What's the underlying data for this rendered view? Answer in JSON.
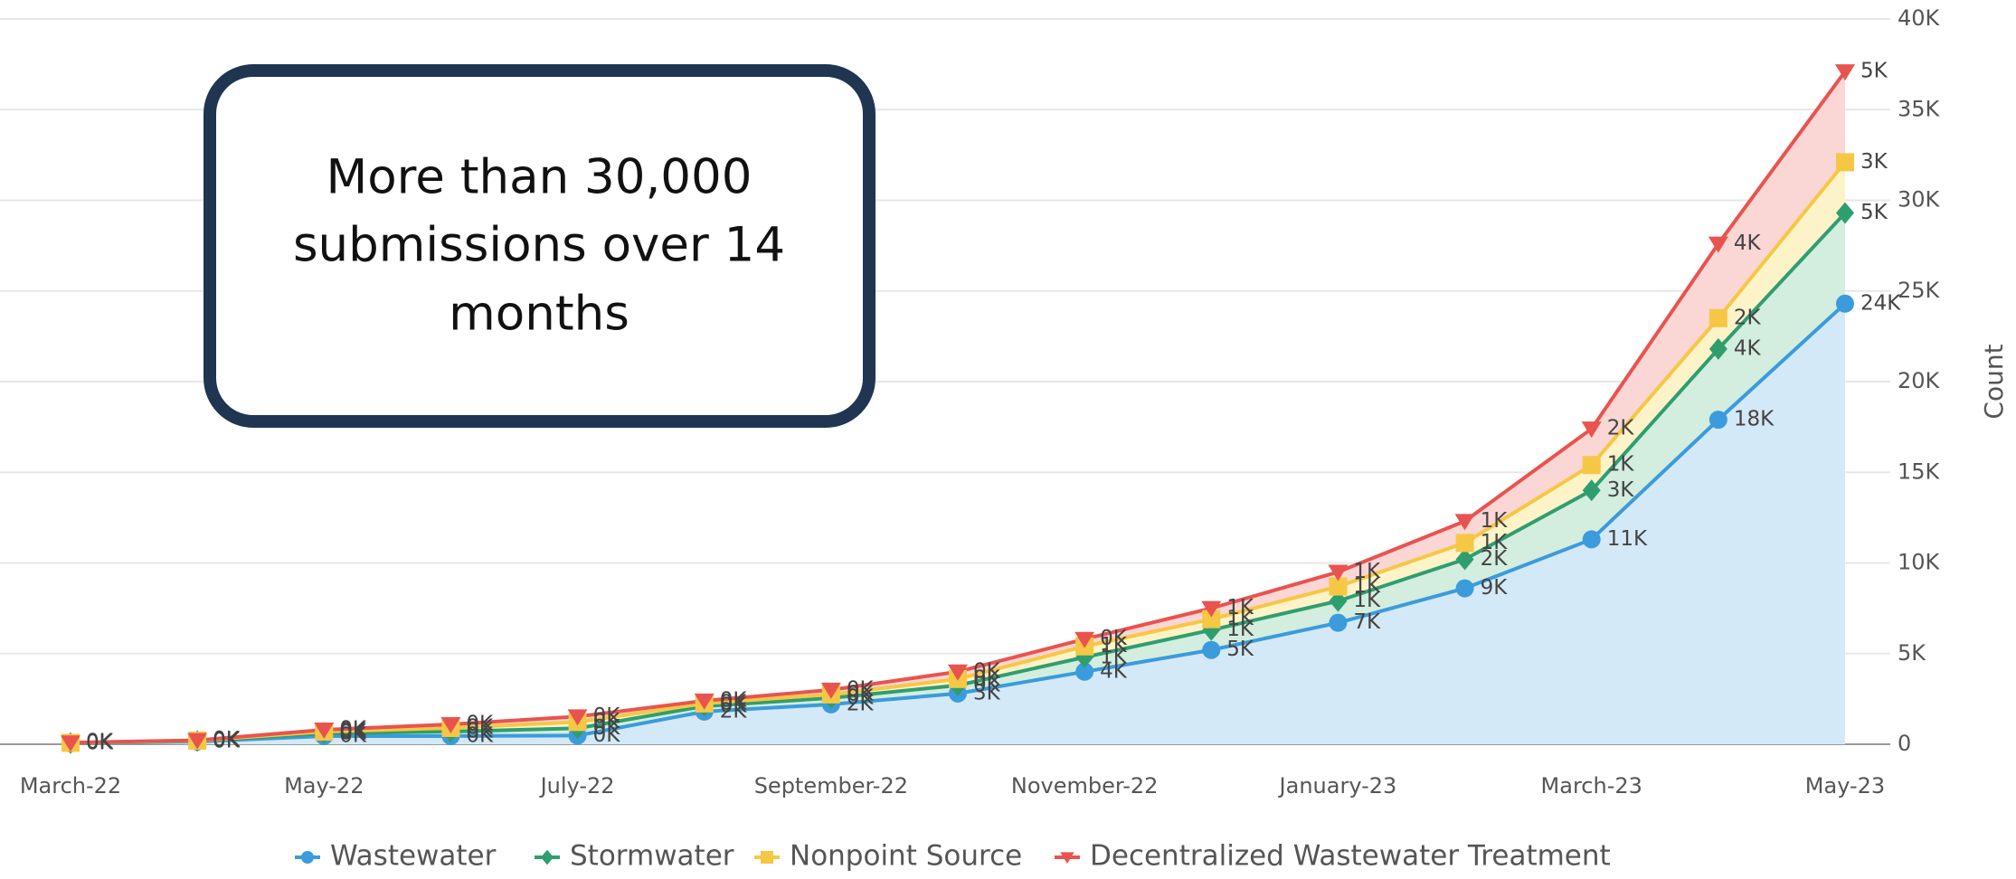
{
  "chart_data": {
    "type": "stacked-area",
    "categories": [
      "March-22",
      null,
      "May-22",
      null,
      "July-22",
      null,
      "September-22",
      null,
      "November-22",
      null,
      "January-23",
      null,
      "March-23",
      null,
      "May-23"
    ],
    "y_axis_label": "Count",
    "annotation": [
      "More than 30,000",
      "submissions over 14",
      "months"
    ],
    "ylim": [
      0,
      40000
    ],
    "yticks": [
      0,
      {
        "value": 5000,
        "label": "5K"
      },
      {
        "value": 10000,
        "label": "10K"
      },
      {
        "value": 15000,
        "label": "15K"
      },
      {
        "value": 20000,
        "label": "20K"
      },
      {
        "value": 25000,
        "label": "25K"
      },
      {
        "value": 30000,
        "label": "30K"
      },
      {
        "value": 35000,
        "label": "35K"
      },
      {
        "value": 40000,
        "label": "40K"
      }
    ],
    "grid": true,
    "legend": "bottom",
    "series": [
      {
        "name": "Wastewater",
        "color": "#3b9bdc",
        "fill": "#d4e9f7",
        "marker": "circle",
        "values": [
          50,
          150,
          450,
          450,
          480,
          1800,
          2200,
          2800,
          4000,
          5200,
          6700,
          8600,
          11300,
          17900,
          24300
        ],
        "value_labels": [
          "0K",
          "0K",
          "0K",
          "0K",
          "0K",
          "2K",
          "2K",
          "3K",
          "4K",
          "5K",
          "7K",
          "9K",
          "11K",
          "18K",
          "24K"
        ]
      },
      {
        "name": "Stormwater",
        "color": "#2f9e6f",
        "fill": "#d3eddf",
        "marker": "diamond",
        "values": [
          20,
          30,
          150,
          250,
          400,
          300,
          350,
          450,
          800,
          1100,
          1200,
          1600,
          2700,
          3900,
          5000
        ],
        "value_labels": [
          "0K",
          "0K",
          "0K",
          "0K",
          "0K",
          "0K",
          "0K",
          "0K",
          "1K",
          "1K",
          "1K",
          "2K",
          "3K",
          "4K",
          "5K"
        ]
      },
      {
        "name": "Nonpoint Source",
        "color": "#f6c744",
        "fill": "#fdf3c9",
        "marker": "square",
        "values": [
          10,
          20,
          100,
          200,
          350,
          150,
          200,
          350,
          600,
          600,
          800,
          900,
          1400,
          1700,
          2800
        ],
        "value_labels": [
          "0K",
          "0K",
          "0K",
          "0K",
          "0K",
          "0K",
          "0K",
          "0K",
          "1K",
          "1K",
          "1K",
          "1K",
          "1K",
          "2K",
          "3K"
        ]
      },
      {
        "name": "Decentralized Wastewater Treatment",
        "color": "#e9534f",
        "fill": "#fad6d4",
        "marker": "triangle",
        "values": [
          10,
          20,
          100,
          200,
          300,
          150,
          250,
          400,
          400,
          600,
          800,
          1200,
          2000,
          4100,
          5000
        ],
        "value_labels": [
          "0K",
          "0K",
          "0K",
          "0K",
          "0K",
          "0K",
          "0K",
          "0K",
          "0K",
          "1K",
          "1K",
          "1K",
          "2K",
          "4K",
          "5K"
        ]
      }
    ]
  }
}
